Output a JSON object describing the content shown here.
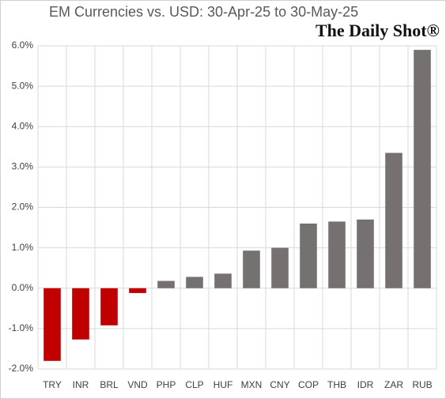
{
  "chart_data": {
    "type": "bar",
    "title": "EM Currencies vs. USD: 30-Apr-25 to 30-May-25",
    "brand": "The Daily Shot®",
    "categories": [
      "TRY",
      "INR",
      "BRL",
      "VND",
      "PHP",
      "CLP",
      "HUF",
      "MXN",
      "CNY",
      "COP",
      "THB",
      "IDR",
      "ZAR",
      "RUB"
    ],
    "values": [
      -1.8,
      -1.27,
      -0.92,
      -0.12,
      0.18,
      0.28,
      0.36,
      0.93,
      1.0,
      1.6,
      1.65,
      1.7,
      3.35,
      5.9
    ],
    "colors": [
      "#c00000",
      "#c00000",
      "#c00000",
      "#c00000",
      "#767171",
      "#767171",
      "#767171",
      "#767171",
      "#767171",
      "#767171",
      "#767171",
      "#767171",
      "#767171",
      "#767171"
    ],
    "ylim": [
      -2,
      6
    ],
    "yticks": [
      {
        "value": -2,
        "label": "-2.0%"
      },
      {
        "value": -1,
        "label": "-1.0%"
      },
      {
        "value": 0,
        "label": "0.0%"
      },
      {
        "value": 1,
        "label": "1.0%"
      },
      {
        "value": 2,
        "label": "2.0%"
      },
      {
        "value": 3,
        "label": "3.0%"
      },
      {
        "value": 4,
        "label": "4.0%"
      },
      {
        "value": 5,
        "label": "5.0%"
      },
      {
        "value": 6,
        "label": "6.0%"
      }
    ],
    "grid": true
  }
}
